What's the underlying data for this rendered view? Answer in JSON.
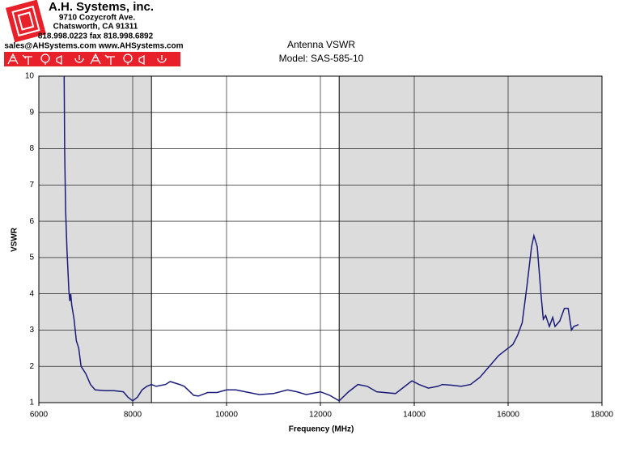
{
  "header": {
    "company": "A.H. Systems, inc.",
    "address": "9710 Cozycroft Ave.",
    "city": "Chatsworth, CA 91311",
    "phone": "818.998.0223 fax 818.998.6892",
    "web": "sales@AHSystems.com www.AHSystems.com"
  },
  "chart_data": {
    "type": "line",
    "title": "Antenna VSWR",
    "subtitle": "Model: SAS-585-10",
    "x_label": "Frequency (MHz)",
    "y_label": "VSWR",
    "xlim": [
      6000,
      18000
    ],
    "ylim": [
      1,
      10
    ],
    "xticks": [
      6000,
      8000,
      10000,
      12000,
      14000,
      16000,
      18000
    ],
    "yticks": [
      1,
      2,
      3,
      4,
      5,
      6,
      7,
      8,
      9,
      10
    ],
    "grid": true,
    "shaded_regions": [
      [
        6000,
        8400
      ],
      [
        12400,
        18000
      ]
    ],
    "shade_color": "#dcdcdc",
    "series": [
      {
        "name": "VSWR",
        "color": "#1c1c7a",
        "x": [
          6540,
          6550,
          6570,
          6600,
          6640,
          6660,
          6680,
          6700,
          6750,
          6800,
          6850,
          6900,
          7000,
          7100,
          7200,
          7400,
          7600,
          7800,
          7900,
          8000,
          8100,
          8200,
          8300,
          8400,
          8500,
          8700,
          8800,
          9000,
          9100,
          9300,
          9400,
          9600,
          9800,
          10000,
          10200,
          10400,
          10700,
          11000,
          11300,
          11500,
          11700,
          12000,
          12200,
          12400,
          12600,
          12800,
          13000,
          13200,
          13600,
          13800,
          13950,
          14100,
          14300,
          14500,
          14600,
          14800,
          15000,
          15200,
          15400,
          15600,
          15800,
          16000,
          16100,
          16200,
          16300,
          16400,
          16500,
          16550,
          16620,
          16700,
          16750,
          16800,
          16880,
          16950,
          17000,
          17100,
          17200,
          17280,
          17350,
          17400,
          17500
        ],
        "values": [
          10,
          8,
          6.3,
          5.2,
          4.1,
          3.8,
          4.0,
          3.7,
          3.3,
          2.7,
          2.5,
          2.0,
          1.8,
          1.5,
          1.35,
          1.33,
          1.33,
          1.3,
          1.15,
          1.05,
          1.15,
          1.35,
          1.45,
          1.5,
          1.45,
          1.5,
          1.58,
          1.5,
          1.45,
          1.2,
          1.18,
          1.28,
          1.28,
          1.35,
          1.35,
          1.3,
          1.22,
          1.25,
          1.35,
          1.3,
          1.22,
          1.3,
          1.2,
          1.05,
          1.3,
          1.5,
          1.45,
          1.3,
          1.25,
          1.45,
          1.6,
          1.5,
          1.4,
          1.45,
          1.5,
          1.48,
          1.45,
          1.5,
          1.7,
          2.0,
          2.3,
          2.5,
          2.6,
          2.85,
          3.2,
          4.2,
          5.3,
          5.6,
          5.3,
          4.0,
          3.3,
          3.4,
          3.1,
          3.35,
          3.1,
          3.25,
          3.6,
          3.6,
          3.0,
          3.1,
          3.15
        ]
      }
    ]
  }
}
